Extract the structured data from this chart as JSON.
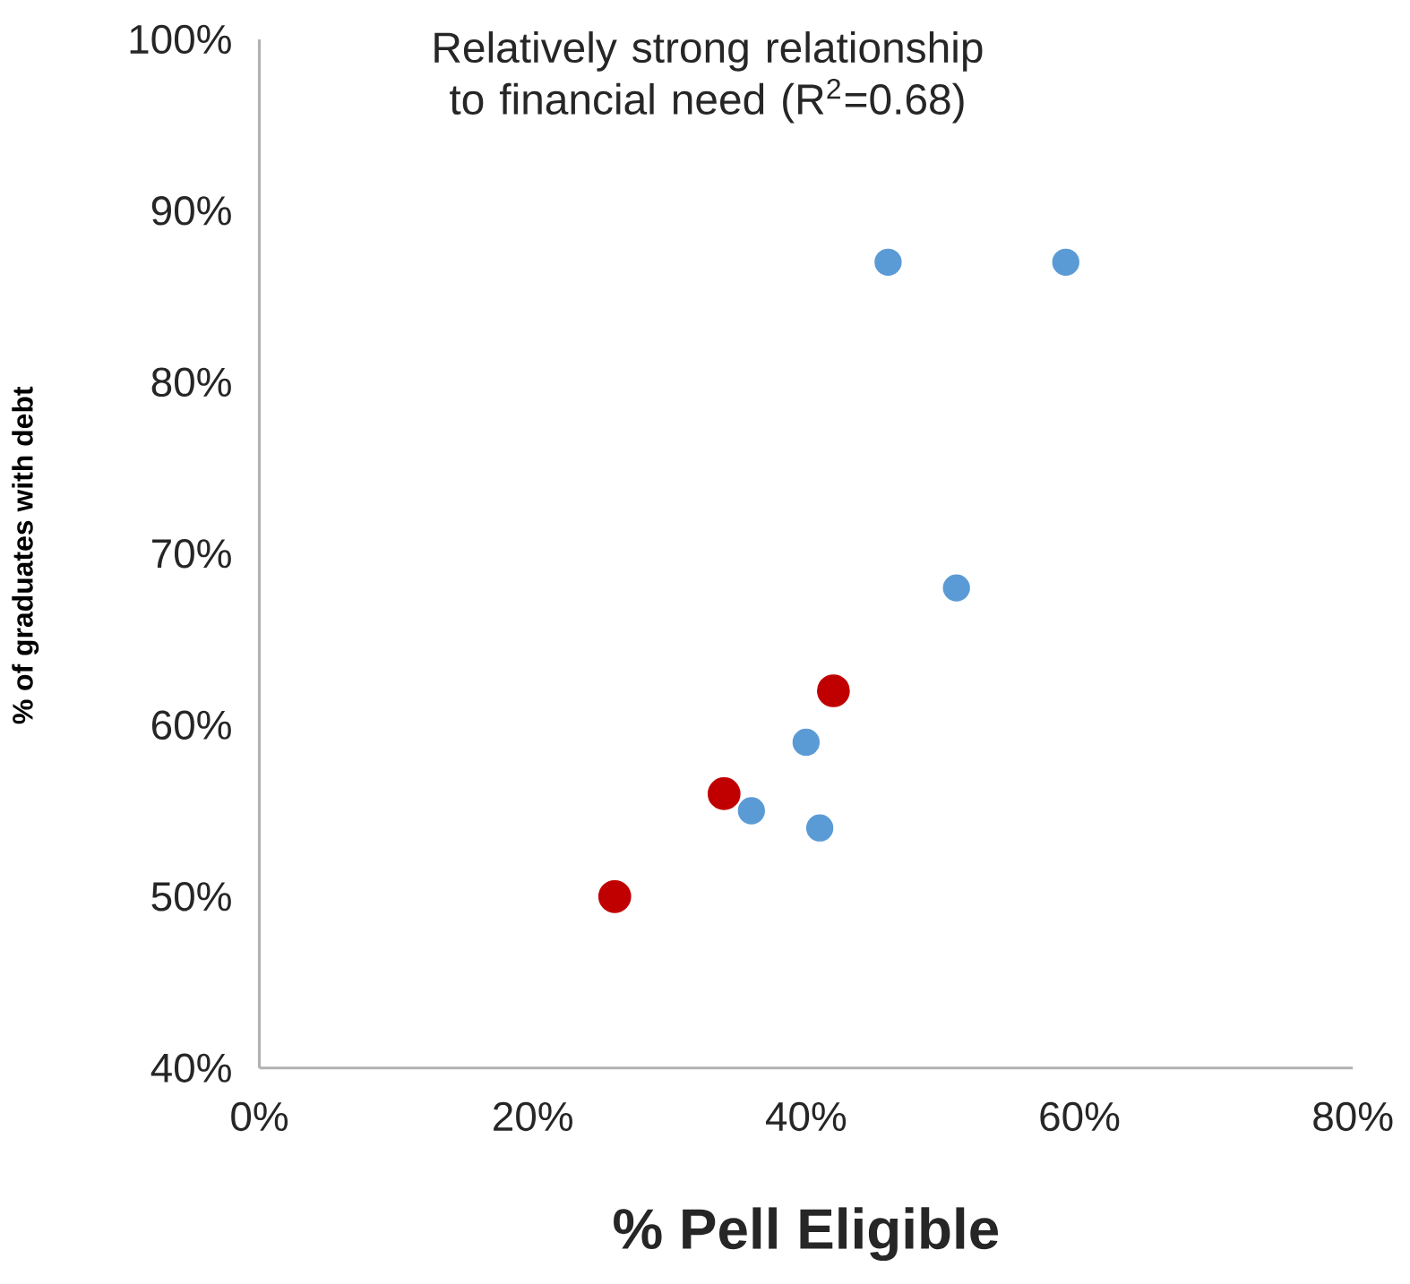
{
  "chart_data": {
    "type": "scatter",
    "title": "Relatively strong relationship to financial need (R$^{2}$=0.68)",
    "xlabel": "% Pell Eligible",
    "ylabel": "% of graduates with debt",
    "xlim": [
      0,
      80
    ],
    "xticks": [
      {
        "value": 0,
        "label": "0%"
      },
      {
        "value": 20,
        "label": "20%"
      },
      {
        "value": 40,
        "label": "40%"
      },
      {
        "value": 60,
        "label": "60%"
      },
      {
        "value": 80,
        "label": "80%"
      }
    ],
    "ylim": [
      40,
      100
    ],
    "yticks": [
      {
        "value": 40,
        "label": "40%"
      },
      {
        "value": 50,
        "label": "50%"
      },
      {
        "value": 60,
        "label": "60%"
      },
      {
        "value": 70,
        "label": "70%"
      },
      {
        "value": 80,
        "label": "80%"
      },
      {
        "value": 90,
        "label": "90%"
      },
      {
        "value": 100,
        "label": "100%"
      }
    ],
    "grid": false,
    "series": [
      {
        "color": "#5b9bd5",
        "x": [
          46,
          59,
          51,
          40,
          36,
          41
        ],
        "values": [
          87,
          87,
          68,
          59,
          55,
          54
        ]
      },
      {
        "color": "#c00000",
        "x": [
          42,
          34,
          26
        ],
        "values": [
          62,
          56,
          50
        ]
      }
    ]
  }
}
